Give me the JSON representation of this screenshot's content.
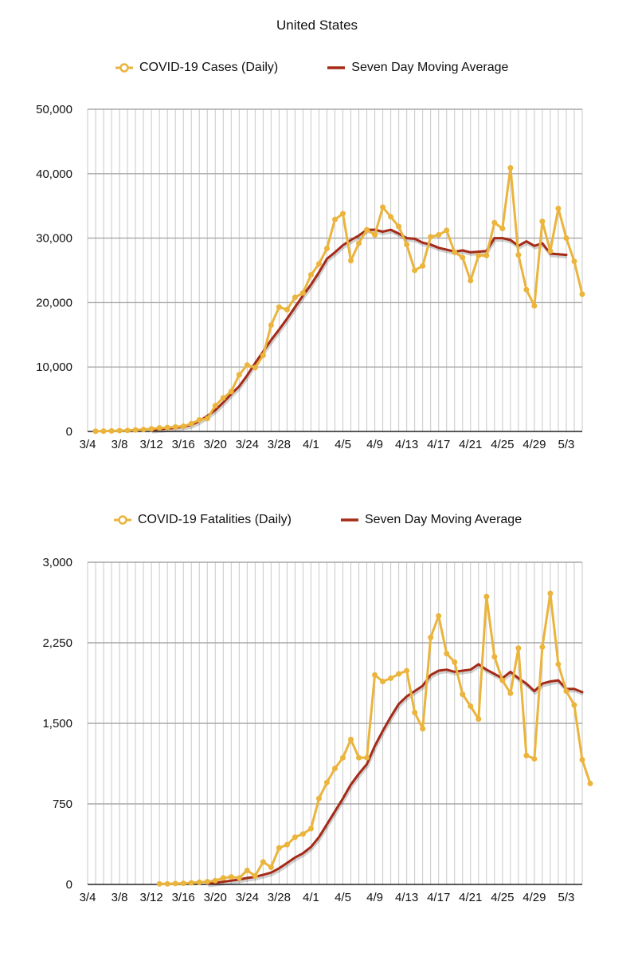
{
  "title": "United States",
  "colors": {
    "daily": "#EBB43C",
    "average": "#A52A17",
    "grid": "#C8C8C8",
    "gridMajor": "#A8A8A8"
  },
  "chart_data": [
    {
      "type": "line",
      "legend": {
        "daily": "COVID-19 Cases (Daily)",
        "average": "Seven Day Moving Average"
      },
      "x_ticks": [
        "3/4",
        "3/8",
        "3/12",
        "3/16",
        "3/20",
        "3/24",
        "3/28",
        "4/1",
        "4/5",
        "4/9",
        "4/13",
        "4/17",
        "4/21",
        "4/25",
        "4/29",
        "5/3"
      ],
      "y_ticks": [
        "0",
        "10,000",
        "20,000",
        "30,000",
        "40,000",
        "50,000"
      ],
      "ylim": [
        0,
        50000
      ],
      "series": [
        {
          "name": "COVID-19 Cases (Daily)",
          "start_day": 1,
          "values": [
            30,
            50,
            80,
            120,
            150,
            230,
            300,
            400,
            550,
            600,
            700,
            800,
            1200,
            1800,
            2000,
            4000,
            5200,
            6200,
            8800,
            10300,
            9900,
            11800,
            16500,
            19300,
            18900,
            20800,
            21500,
            24300,
            26000,
            28400,
            32900,
            33800,
            26500,
            29200,
            31300,
            30500,
            34800,
            33300,
            31800,
            29000,
            25000,
            25700,
            30200,
            30500,
            31200,
            27800,
            27000,
            23400,
            27300,
            27300,
            32400,
            31500,
            40900,
            27400,
            22000,
            19500,
            32600,
            28000,
            34600,
            30000,
            26400,
            21300
          ]
        },
        {
          "name": "Seven Day Moving Average",
          "start_day": 8,
          "values": [
            250,
            350,
            450,
            550,
            750,
            1000,
            1600,
            2400,
            3300,
            4500,
            5800,
            7000,
            8700,
            10600,
            12400,
            14200,
            15800,
            17500,
            19300,
            21100,
            22800,
            24700,
            26800,
            27800,
            28900,
            29700,
            30400,
            31300,
            31300,
            31000,
            31300,
            30700,
            30000,
            29900,
            29300,
            29000,
            28500,
            28200,
            27900,
            28100,
            27800,
            27900,
            28000,
            30000,
            30000,
            29700,
            28800,
            29500,
            28800,
            29200,
            27600,
            27500,
            27400
          ]
        }
      ]
    },
    {
      "type": "line",
      "legend": {
        "daily": "COVID-19 Fatalities (Daily)",
        "average": "Seven Day Moving Average"
      },
      "x_ticks": [
        "3/4",
        "3/8",
        "3/12",
        "3/16",
        "3/20",
        "3/24",
        "3/28",
        "4/1",
        "4/5",
        "4/9",
        "4/13",
        "4/17",
        "4/21",
        "4/25",
        "4/29",
        "5/3"
      ],
      "y_ticks": [
        "0",
        "750",
        "1,500",
        "2,250",
        "3,000"
      ],
      "ylim": [
        0,
        3000
      ],
      "series": [
        {
          "name": "COVID-19 Fatalities (Daily)",
          "start_day": 9,
          "values": [
            5,
            5,
            8,
            10,
            15,
            20,
            25,
            35,
            60,
            70,
            60,
            130,
            80,
            210,
            160,
            340,
            370,
            440,
            470,
            520,
            800,
            950,
            1080,
            1180,
            1350,
            1180,
            1180,
            1950,
            1890,
            1920,
            1960,
            1990,
            1600,
            1450,
            2300,
            2500,
            2150,
            2070,
            1770,
            1660,
            1540,
            2680,
            2120,
            1900,
            1780,
            2200,
            1200,
            1170,
            2210,
            2710,
            2050,
            1800,
            1670,
            1160,
            940
          ]
        },
        {
          "name": "Seven Day Moving Average",
          "start_day": 15,
          "values": [
            8,
            15,
            25,
            35,
            45,
            60,
            70,
            90,
            110,
            150,
            200,
            250,
            290,
            350,
            440,
            560,
            680,
            800,
            930,
            1030,
            1120,
            1290,
            1430,
            1560,
            1680,
            1750,
            1800,
            1850,
            1950,
            1990,
            2000,
            1980,
            1990,
            2000,
            2050,
            2000,
            1960,
            1920,
            1980,
            1920,
            1870,
            1800,
            1870,
            1890,
            1900,
            1820,
            1820,
            1790
          ]
        }
      ]
    }
  ]
}
